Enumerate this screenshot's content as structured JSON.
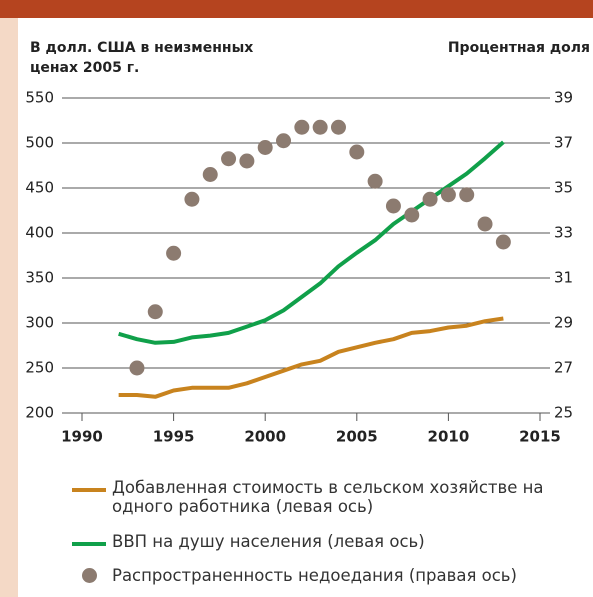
{
  "chart_data": {
    "type": "line",
    "y_label": [
      "В долл. США в неизменных",
      "ценах 2005 г."
    ],
    "y2_label": "Процентная доля",
    "x": [
      1992,
      1993,
      1994,
      1995,
      1996,
      1997,
      1998,
      1999,
      2000,
      2001,
      2002,
      2003,
      2004,
      2005,
      2006,
      2007,
      2008,
      2009,
      2010,
      2011,
      2012,
      2013
    ],
    "series": [
      {
        "name": "Добавленная стоимость в сельском хозяйстве на одного работника (левая ось)",
        "color": "#c8831e",
        "style": "line",
        "values": [
          220,
          220,
          218,
          225,
          228,
          228,
          228,
          233,
          240,
          247,
          254,
          258,
          268,
          273,
          278,
          282,
          289,
          291,
          295,
          297,
          302,
          305
        ]
      },
      {
        "name": "ВВП на душу населения (левая ось)",
        "color": "#10a04a",
        "style": "line",
        "values": [
          288,
          282,
          278,
          279,
          284,
          286,
          289,
          296,
          303,
          314,
          329,
          344,
          363,
          378,
          392,
          410,
          424,
          438,
          452,
          466,
          483,
          501
        ]
      },
      {
        "name": "Распространенность недоедания (правая ось)",
        "color": "#8c7b70",
        "style": "scatter",
        "axis": "y2",
        "values": [
          null,
          27.0,
          29.5,
          32.1,
          34.5,
          35.6,
          36.3,
          36.2,
          36.8,
          37.1,
          37.7,
          37.7,
          37.7,
          36.6,
          35.3,
          34.2,
          33.8,
          34.5,
          34.7,
          34.7,
          33.4,
          32.6
        ]
      }
    ],
    "xlim": [
      1990,
      2015
    ],
    "xticks": [
      1990,
      1995,
      2000,
      2005,
      2010,
      2015
    ],
    "ylim": [
      200,
      550
    ],
    "yticks": [
      200,
      250,
      300,
      350,
      400,
      450,
      500,
      550
    ],
    "y2lim": [
      25,
      39
    ],
    "y2ticks": [
      25,
      27,
      29,
      31,
      33,
      35,
      37,
      39
    ],
    "grid": true
  }
}
